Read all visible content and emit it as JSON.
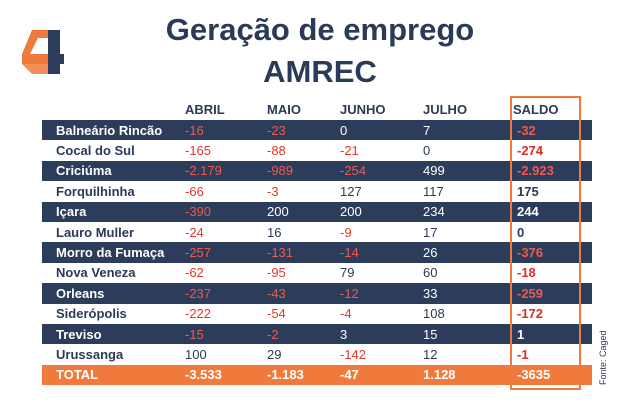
{
  "title_line1": "Geração de emprego",
  "title_line2": "AMREC",
  "headers": [
    "",
    "ABRIL",
    "MAIO",
    "JUNHO",
    "JULHO",
    "SALDO"
  ],
  "rows": [
    {
      "name": "Balneário Rincão",
      "abril": "-16",
      "maio": "-23",
      "junho": "0",
      "julho": "7",
      "saldo": "-32"
    },
    {
      "name": "Cocal do Sul",
      "abril": "-165",
      "maio": "-88",
      "junho": "-21",
      "julho": "0",
      "saldo": "-274"
    },
    {
      "name": "Criciúma",
      "abril": "-2.179",
      "maio": "-989",
      "junho": "-254",
      "julho": "499",
      "saldo": "-2.923"
    },
    {
      "name": "Forquilhinha",
      "abril": "-66",
      "maio": "-3",
      "junho": "127",
      "julho": "117",
      "saldo": "175"
    },
    {
      "name": "Içara",
      "abril": "-390",
      "maio": "200",
      "junho": "200",
      "julho": "234",
      "saldo": "244"
    },
    {
      "name": "Lauro Muller",
      "abril": "-24",
      "maio": "16",
      "junho": "-9",
      "julho": "17",
      "saldo": "0"
    },
    {
      "name": "Morro da Fumaça",
      "abril": "-257",
      "maio": "-131",
      "junho": "-14",
      "julho": "26",
      "saldo": "-376"
    },
    {
      "name": "Nova Veneza",
      "abril": "-62",
      "maio": "-95",
      "junho": "79",
      "julho": "60",
      "saldo": "-18"
    },
    {
      "name": "Orleans",
      "abril": "-237",
      "maio": "-43",
      "junho": "-12",
      "julho": "33",
      "saldo": "-259"
    },
    {
      "name": "Siderópolis",
      "abril": "-222",
      "maio": "-54",
      "junho": "-4",
      "julho": "108",
      "saldo": "-172"
    },
    {
      "name": "Treviso",
      "abril": "-15",
      "maio": "-2",
      "junho": "3",
      "julho": "15",
      "saldo": "1"
    },
    {
      "name": "Urussanga",
      "abril": "100",
      "maio": "29",
      "junho": "-142",
      "julho": "12",
      "saldo": "-1"
    }
  ],
  "total": {
    "name": "TOTAL",
    "abril": "-3.533",
    "maio": "-1.183",
    "junho": "-47",
    "julho": "1.128",
    "saldo": "-3635"
  },
  "source": "Fonte: Caged",
  "colors": {
    "navy": "#2c3d5b",
    "orange": "#f07a3c",
    "negative": "#e5362a"
  },
  "logo_icon": "4-logo"
}
